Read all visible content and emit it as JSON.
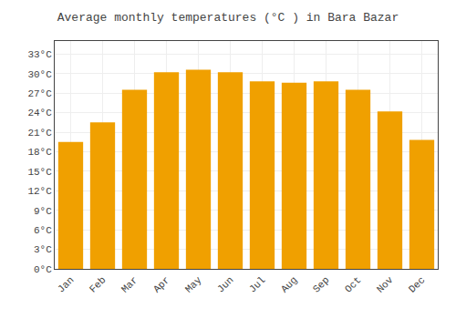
{
  "chart_data": {
    "type": "bar",
    "title": "Average monthly temperatures (°C ) in Bara Bazar",
    "categories": [
      "Jan",
      "Feb",
      "Mar",
      "Apr",
      "May",
      "Jun",
      "Jul",
      "Aug",
      "Sep",
      "Oct",
      "Nov",
      "Dec"
    ],
    "values": [
      19.5,
      22.5,
      27.5,
      30.2,
      30.6,
      30.2,
      28.8,
      28.6,
      28.8,
      27.5,
      24.2,
      19.8
    ],
    "color": "#F0A000",
    "ylim": [
      0,
      35
    ],
    "yticks": [
      {
        "value": 0,
        "label": "0°C"
      },
      {
        "value": 3,
        "label": "3°C"
      },
      {
        "value": 6,
        "label": "6°C"
      },
      {
        "value": 9,
        "label": "9°C"
      },
      {
        "value": 12,
        "label": "12°C"
      },
      {
        "value": 15,
        "label": "15°C"
      },
      {
        "value": 18,
        "label": "18°C"
      },
      {
        "value": 21,
        "label": "21°C"
      },
      {
        "value": 24,
        "label": "24°C"
      },
      {
        "value": 27,
        "label": "27°C"
      },
      {
        "value": 30,
        "label": "30°C"
      },
      {
        "value": 33,
        "label": "33°C"
      }
    ],
    "grid": true
  }
}
